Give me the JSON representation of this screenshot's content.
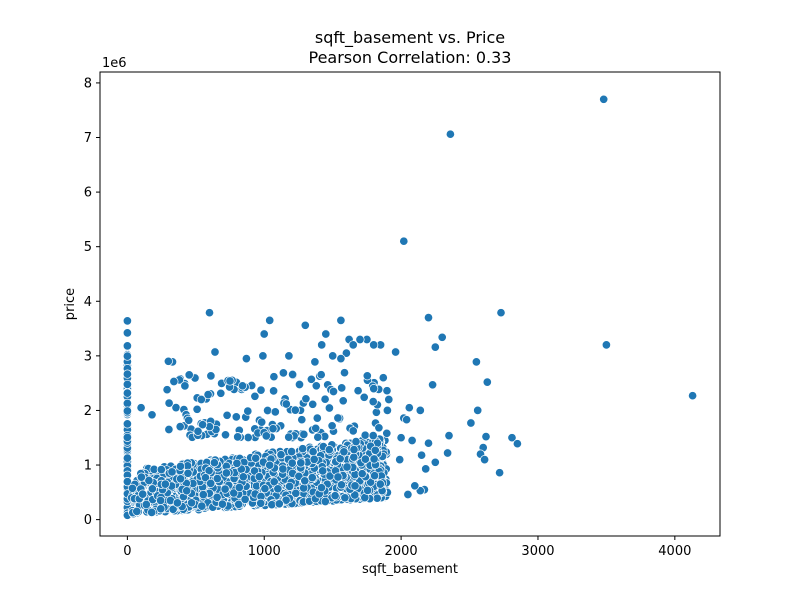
{
  "chart_data": {
    "type": "scatter",
    "title": "sqft_basement vs. Price",
    "subtitle": "Pearson Correlation: 0.33",
    "xlabel": "sqft_basement",
    "ylabel": "price",
    "y_offset_label": "1e6",
    "xlim": [
      -200,
      4330
    ],
    "ylim": [
      -300000,
      8200000
    ],
    "x_ticks": [
      0,
      1000,
      2000,
      3000,
      4000
    ],
    "x_tick_labels": [
      "0",
      "1000",
      "2000",
      "3000",
      "4000"
    ],
    "y_ticks": [
      0,
      1000000,
      2000000,
      3000000,
      4000000,
      5000000,
      6000000,
      7000000,
      8000000
    ],
    "y_tick_labels": [
      "0",
      "1",
      "2",
      "3",
      "4",
      "5",
      "6",
      "7",
      "8"
    ],
    "grid": false,
    "marker_color": "#1f77b4",
    "points_outliers": [
      [
        3480,
        7700000
      ],
      [
        2360,
        7060000
      ],
      [
        2020,
        5100000
      ],
      [
        600,
        3790000
      ],
      [
        2730,
        3790000
      ],
      [
        4130,
        2270000
      ],
      [
        3500,
        3200000
      ],
      [
        2200,
        3700000
      ],
      [
        1560,
        3650000
      ],
      [
        1040,
        3650000
      ],
      [
        1300,
        3560000
      ],
      [
        0,
        3640000
      ],
      [
        0,
        3420000
      ],
      [
        1000,
        3400000
      ],
      [
        1450,
        3400000
      ],
      [
        1620,
        3300000
      ],
      [
        1750,
        3300000
      ],
      [
        2300,
        3340000
      ],
      [
        2250,
        3160000
      ],
      [
        2550,
        2890000
      ],
      [
        2630,
        2520000
      ],
      [
        2230,
        2470000
      ],
      [
        2560,
        2000000
      ],
      [
        2810,
        1500000
      ],
      [
        2850,
        1390000
      ],
      [
        2720,
        860000
      ],
      [
        2600,
        1320000
      ],
      [
        2620,
        1520000
      ],
      [
        2510,
        1770000
      ],
      [
        2580,
        1200000
      ],
      [
        2610,
        1100000
      ],
      [
        2350,
        1540000
      ],
      [
        2340,
        1220000
      ],
      [
        2200,
        1400000
      ],
      [
        2140,
        2000000
      ],
      [
        2060,
        2050000
      ],
      [
        2020,
        1860000
      ],
      [
        2040,
        1830000
      ],
      [
        1960,
        3070000
      ],
      [
        1850,
        3200000
      ],
      [
        1800,
        3200000
      ],
      [
        1700,
        3300000
      ],
      [
        1650,
        3200000
      ],
      [
        1600,
        3050000
      ],
      [
        1560,
        2950000
      ],
      [
        1500,
        3000000
      ],
      [
        1420,
        3200000
      ],
      [
        1370,
        2890000
      ],
      [
        1180,
        3000000
      ],
      [
        990,
        3000000
      ],
      [
        640,
        3070000
      ],
      [
        330,
        2890000
      ],
      [
        300,
        2900000
      ],
      [
        870,
        2950000
      ],
      [
        750,
        2540000
      ],
      [
        590,
        2290000
      ],
      [
        540,
        2200000
      ],
      [
        380,
        2560000
      ],
      [
        420,
        2450000
      ],
      [
        290,
        2380000
      ],
      [
        340,
        2530000
      ],
      [
        100,
        2050000
      ],
      [
        180,
        1920000
      ],
      [
        1910,
        2200000
      ],
      [
        1870,
        2600000
      ],
      [
        1800,
        2400000
      ],
      [
        1900,
        2000000
      ],
      [
        1730,
        2240000
      ],
      [
        2170,
        550000
      ],
      [
        2140,
        530000
      ],
      [
        2050,
        460000
      ],
      [
        2100,
        620000
      ],
      [
        2250,
        1050000
      ],
      [
        2180,
        930000
      ],
      [
        2150,
        1180000
      ],
      [
        1990,
        1100000
      ],
      [
        2000,
        1500000
      ],
      [
        2080,
        1450000
      ]
    ],
    "point_cloud": {
      "x_zero_column": {
        "x": 0,
        "y_min": 80000,
        "y_max": 3200000
      },
      "dense_region": {
        "x_min": 0,
        "x_max": 1900,
        "y_min": 100000,
        "y_max": 1500000
      },
      "sparse_region": {
        "x_min": 300,
        "x_max": 1900,
        "y_min": 1500000,
        "y_max": 2700000
      }
    }
  }
}
